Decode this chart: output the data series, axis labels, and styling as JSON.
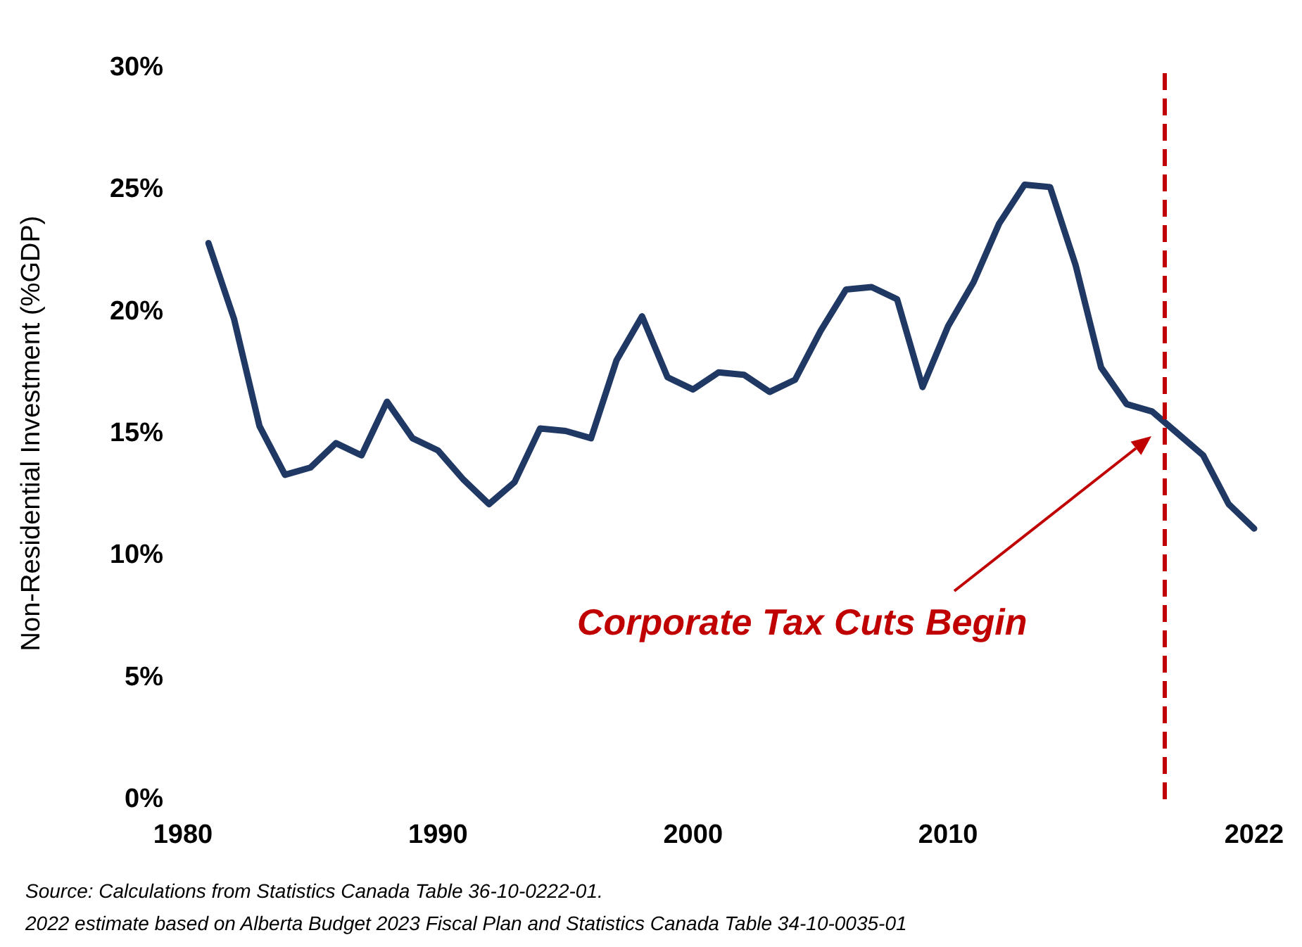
{
  "chart_data": {
    "type": "line",
    "ylabel": "Non-Residential Investment (%GDP)",
    "x": [
      1981,
      1982,
      1983,
      1984,
      1985,
      1986,
      1987,
      1988,
      1989,
      1990,
      1991,
      1992,
      1993,
      1994,
      1995,
      1996,
      1997,
      1998,
      1999,
      2000,
      2001,
      2002,
      2003,
      2004,
      2005,
      2006,
      2007,
      2008,
      2009,
      2010,
      2011,
      2012,
      2013,
      2014,
      2015,
      2016,
      2017,
      2018,
      2019,
      2020,
      2021,
      2022
    ],
    "series": [
      {
        "color": "#203864",
        "values": [
          22.8,
          19.7,
          15.3,
          13.3,
          13.6,
          14.6,
          14.1,
          16.3,
          14.8,
          14.3,
          13.1,
          12.1,
          13.0,
          15.2,
          15.1,
          14.8,
          18.0,
          19.8,
          17.3,
          16.8,
          17.5,
          17.4,
          16.7,
          17.2,
          19.2,
          20.9,
          21.0,
          20.5,
          16.9,
          19.4,
          21.2,
          23.6,
          25.2,
          25.1,
          21.9,
          17.7,
          16.2,
          15.9,
          15.0,
          14.1,
          12.1,
          11.1
        ]
      }
    ],
    "xlim": [
      1980,
      2022
    ],
    "xticks": [
      1980,
      1990,
      2000,
      2010,
      2022
    ],
    "ylim": [
      0,
      30
    ],
    "yticks": [
      {
        "value": 0,
        "label": "0%"
      },
      {
        "value": 5,
        "label": "5%"
      },
      {
        "value": 10,
        "label": "10%"
      },
      {
        "value": 15,
        "label": "15%"
      },
      {
        "value": 20,
        "label": "20%"
      },
      {
        "value": 25,
        "label": "25%"
      },
      {
        "value": 30,
        "label": "30%"
      }
    ],
    "ref_lines": [
      {
        "axis": "x",
        "value": 2018.5,
        "color": "#c00000",
        "line_style": "dashed"
      }
    ],
    "annotations": [
      "Corporate Tax Cuts Begin",
      "Source: Calculations from Statistics Canada Table 36-10-0222-01.",
      "2022 estimate based on Alberta Budget 2023 Fiscal Plan and Statistics Canada Table 34-10-0035-01"
    ],
    "grid": false,
    "marker": "none",
    "line_style": "solid"
  }
}
